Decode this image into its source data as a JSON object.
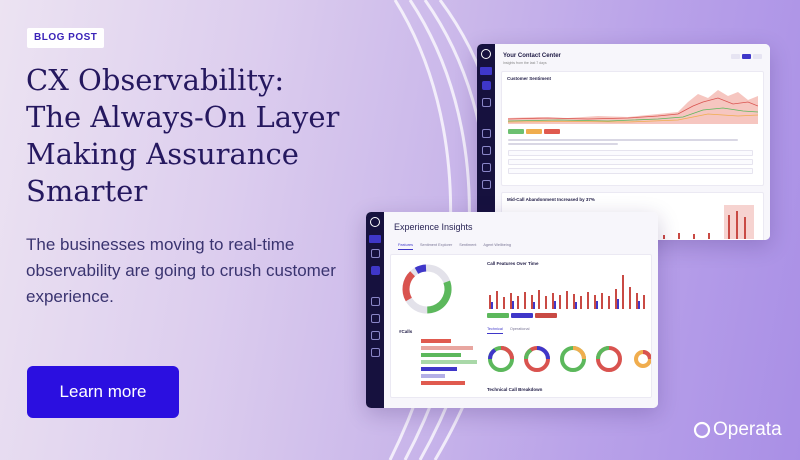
{
  "badge": "BLOG POST",
  "title": "CX Observability: The Always-On Layer Making Assurance Smarter",
  "subtitle": "The businesses moving to real-time observability are going to crush customer experience.",
  "cta_label": "Learn more",
  "brand": "Operata",
  "colors": {
    "accent": "#2b0fe0",
    "title": "#25185f",
    "nav": "#16113e"
  },
  "dashboard_back": {
    "title": "Your Contact Center",
    "subtitle": "Insights from the last 7 days",
    "card1_title": "Customer Sentiment",
    "card2_title": "Mid-Call Abandonment Increased by 37%"
  },
  "dashboard_front": {
    "title": "Experience Insights",
    "tabs": [
      "Features",
      "Sentiment Explorer",
      "Sentiment",
      "Agent Wellbeing"
    ],
    "chart_title": "Call Features Over Time",
    "subtabs": [
      "Technical",
      "Operational"
    ],
    "calls_label": "#Calls",
    "breakdown_label": "Technical Call Breakdown"
  }
}
